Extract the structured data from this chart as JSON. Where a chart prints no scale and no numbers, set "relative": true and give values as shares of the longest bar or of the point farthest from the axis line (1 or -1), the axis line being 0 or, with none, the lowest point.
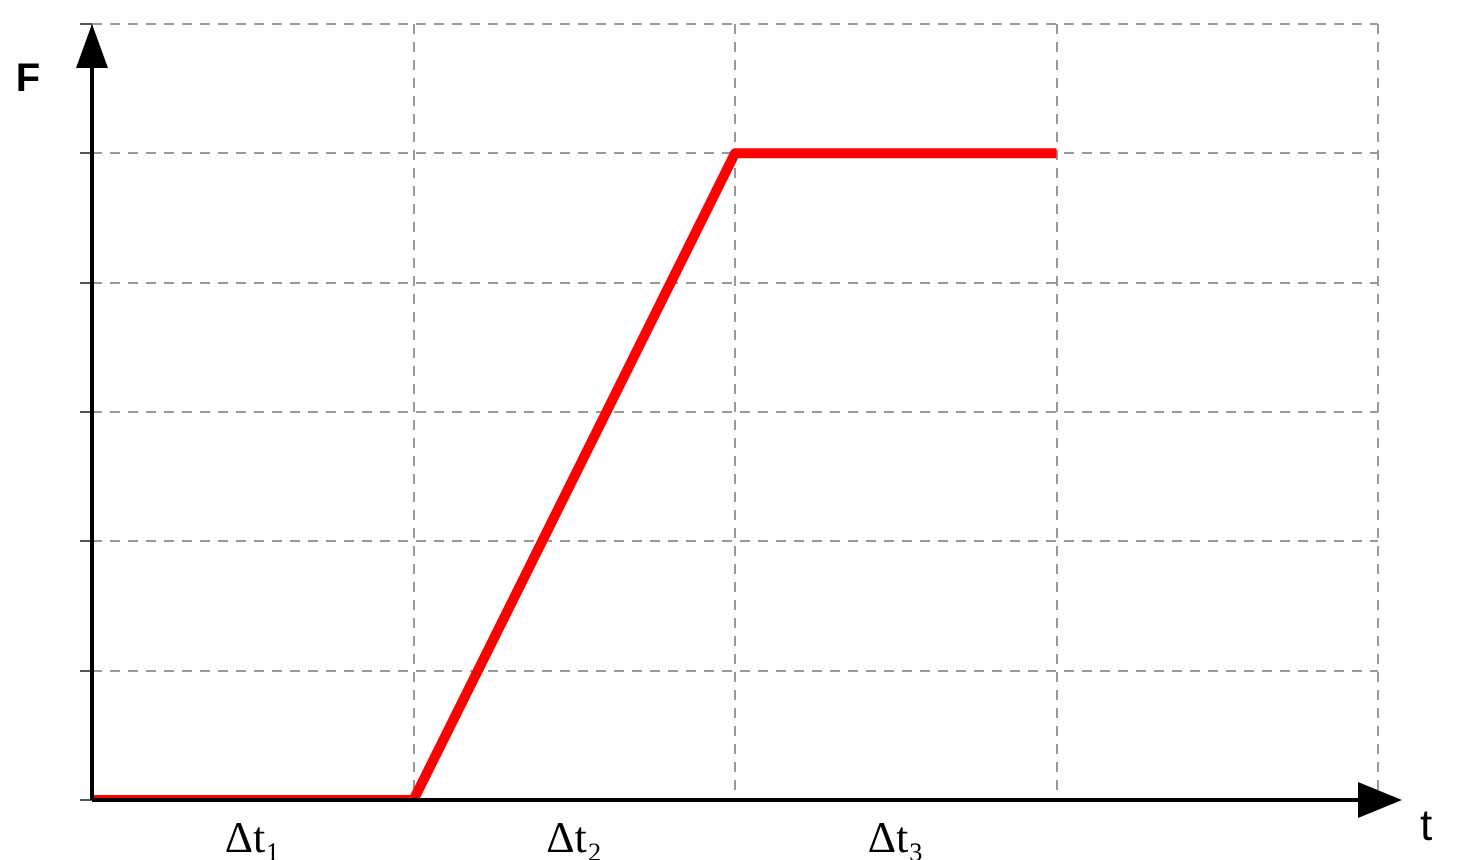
{
  "chart_data": {
    "type": "line",
    "relative": true,
    "xlabel": "t",
    "ylabel": "F",
    "categories": [
      null,
      null,
      null,
      null,
      null
    ],
    "series": [
      {
        "color": "#ff0000",
        "values": [
          0,
          0,
          1,
          1,
          null
        ]
      }
    ],
    "annotations": [
      "Δt₁",
      "Δt₂",
      "Δt₃"
    ],
    "grid": true,
    "legend": false,
    "marker": "none",
    "line_style": "solid"
  }
}
